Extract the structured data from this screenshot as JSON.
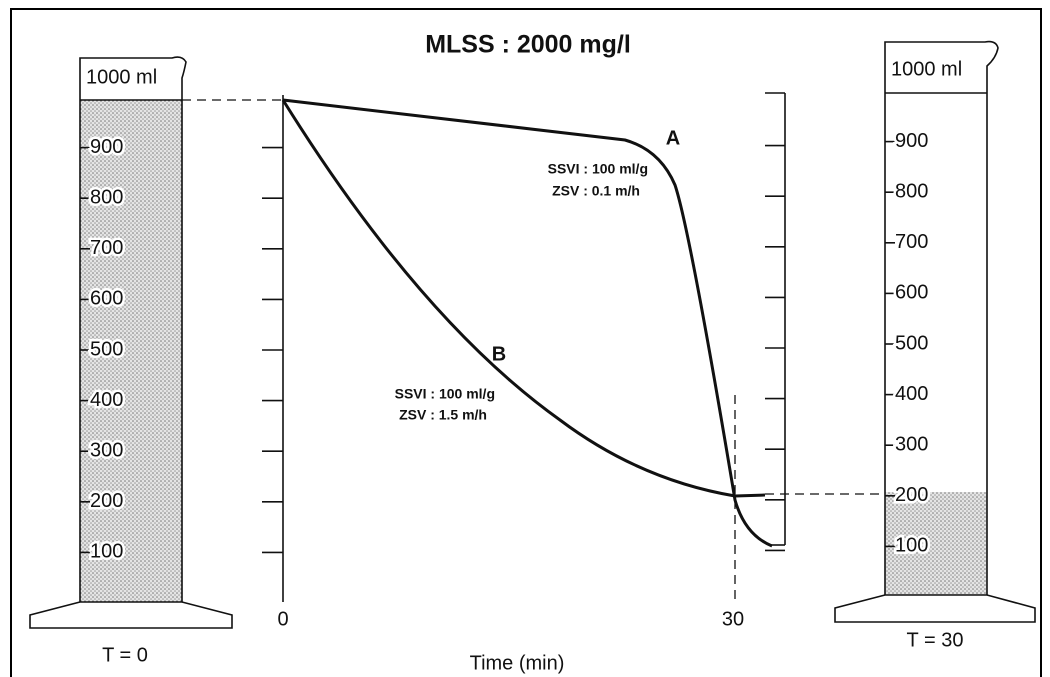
{
  "title": "MLSS : 2000 mg/l",
  "cylinders": [
    {
      "capacity_label": "1000  ml",
      "scale": [
        900,
        800,
        700,
        600,
        500,
        400,
        300,
        200,
        100
      ],
      "caption": "T = 0"
    },
    {
      "capacity_label": "1000 ml",
      "scale": [
        900,
        800,
        700,
        600,
        500,
        400,
        300,
        200,
        100
      ],
      "caption": "T = 30"
    }
  ],
  "graph": {
    "x_labels": [
      "0",
      "30"
    ],
    "x_axis_label": "Time (min)",
    "curves": [
      {
        "label": "A",
        "notes": [
          "SSVI : 100 ml/g",
          "ZSV : 0.1 m/h"
        ]
      },
      {
        "label": "B",
        "notes": [
          "SSVI : 100 ml/g",
          "ZSV : 1.5 m/h"
        ]
      }
    ]
  }
}
